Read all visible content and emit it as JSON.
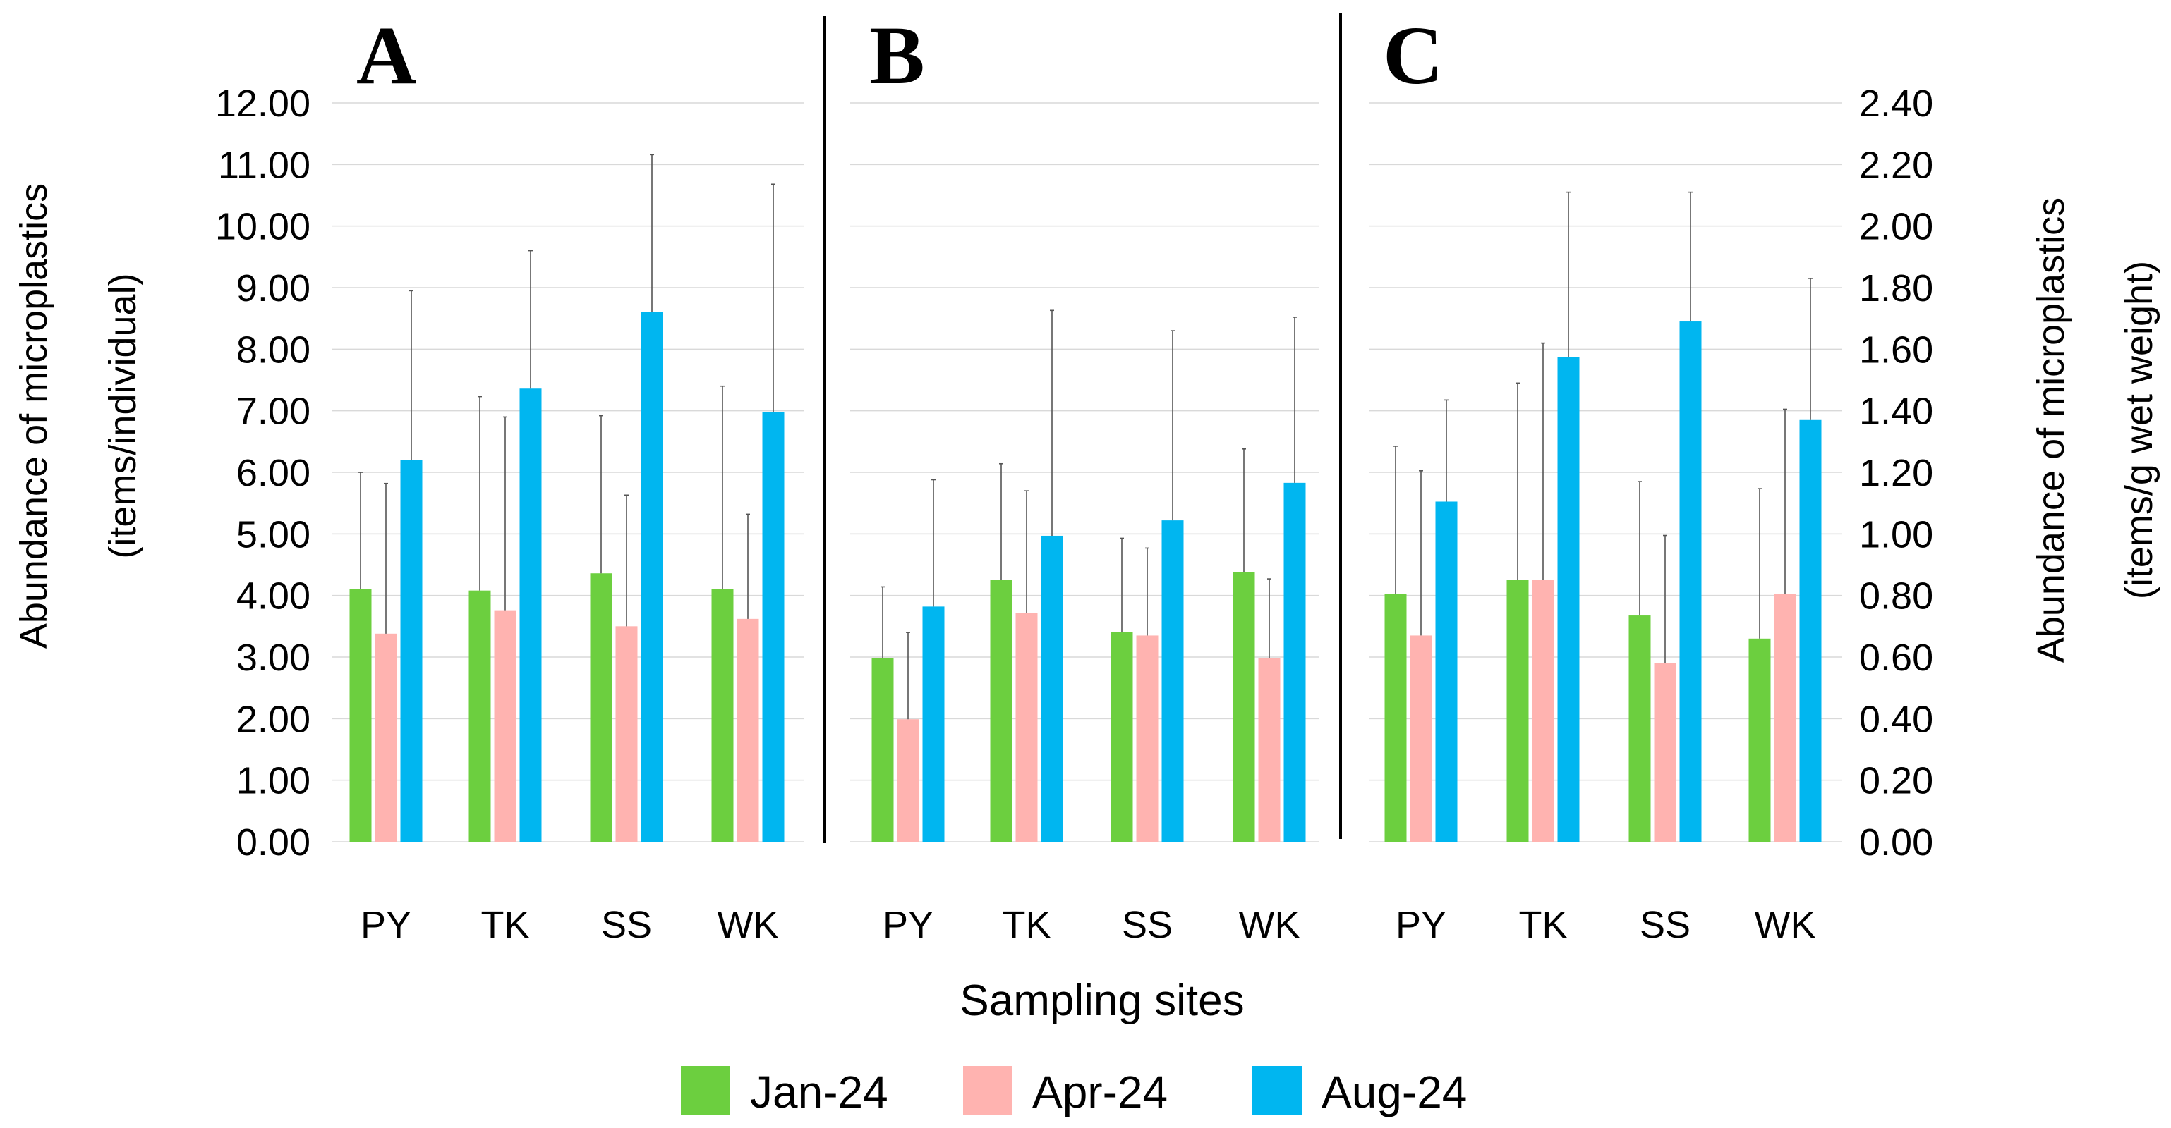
{
  "chart_data": [
    {
      "type": "bar",
      "panel_label": "A",
      "categories": [
        "PY",
        "TK",
        "SS",
        "WK"
      ],
      "ylabel_line1": "Abundance of microplastics",
      "ylabel_line2": "(items/individual)",
      "ylim": [
        0,
        12
      ],
      "yticks": [
        "0.00",
        "1.00",
        "2.00",
        "3.00",
        "4.00",
        "5.00",
        "6.00",
        "7.00",
        "8.00",
        "9.00",
        "10.00",
        "11.00",
        "12.00"
      ],
      "series": [
        {
          "name": "Jan-24",
          "values": [
            4.1,
            4.08,
            4.36,
            4.1
          ],
          "error_upper": [
            6.0,
            7.23,
            6.92,
            7.4
          ]
        },
        {
          "name": "Apr-24",
          "values": [
            3.38,
            3.76,
            3.5,
            3.62
          ],
          "error_upper": [
            5.82,
            6.9,
            5.63,
            5.32
          ]
        },
        {
          "name": "Aug-24",
          "values": [
            6.2,
            7.36,
            8.6,
            6.98
          ],
          "error_upper": [
            8.95,
            9.6,
            11.16,
            10.68
          ]
        }
      ]
    },
    {
      "type": "bar",
      "panel_label": "B",
      "categories": [
        "PY",
        "TK",
        "SS",
        "WK"
      ],
      "ylim": [
        0,
        12
      ],
      "series": [
        {
          "name": "Jan-24",
          "values": [
            2.98,
            4.25,
            3.41,
            4.38
          ],
          "error_upper": [
            4.14,
            6.14,
            4.93,
            6.38
          ]
        },
        {
          "name": "Apr-24",
          "values": [
            1.99,
            3.72,
            3.35,
            2.98
          ],
          "error_upper": [
            3.4,
            5.7,
            4.77,
            4.27
          ]
        },
        {
          "name": "Aug-24",
          "values": [
            3.82,
            4.97,
            5.22,
            5.83
          ],
          "error_upper": [
            5.88,
            8.63,
            8.3,
            8.52
          ]
        }
      ]
    },
    {
      "type": "bar",
      "panel_label": "C",
      "categories": [
        "PY",
        "TK",
        "SS",
        "WK"
      ],
      "ylabel_line1": "Abundance of microplastics",
      "ylabel_line2": "(items/g wet weight)",
      "ylim": [
        0,
        2.4
      ],
      "yticks": [
        "0.00",
        "0.20",
        "0.40",
        "0.60",
        "0.80",
        "1.00",
        "1.20",
        "1.40",
        "1.60",
        "1.80",
        "2.00",
        "2.20",
        "2.40"
      ],
      "series": [
        {
          "name": "Jan-24",
          "values": [
            0.805,
            0.85,
            0.735,
            0.66
          ],
          "error_upper": [
            1.285,
            1.49,
            1.17,
            1.147
          ]
        },
        {
          "name": "Apr-24",
          "values": [
            0.67,
            0.85,
            0.58,
            0.805
          ],
          "error_upper": [
            1.205,
            1.62,
            0.995,
            1.405
          ]
        },
        {
          "name": "Aug-24",
          "values": [
            1.105,
            1.575,
            1.69,
            1.37
          ],
          "error_upper": [
            1.435,
            2.11,
            2.11,
            1.83
          ]
        }
      ]
    }
  ],
  "xlabel": "Sampling sites",
  "legend": [
    {
      "name": "Jan-24",
      "color": "#6ccf3f"
    },
    {
      "name": "Apr-24",
      "color": "#ffb3b0"
    },
    {
      "name": "Aug-24",
      "color": "#00b6f0"
    }
  ],
  "colors": {
    "Jan-24": "#6ccf3f",
    "Apr-24": "#ffb3b0",
    "Aug-24": "#00b6f0"
  }
}
